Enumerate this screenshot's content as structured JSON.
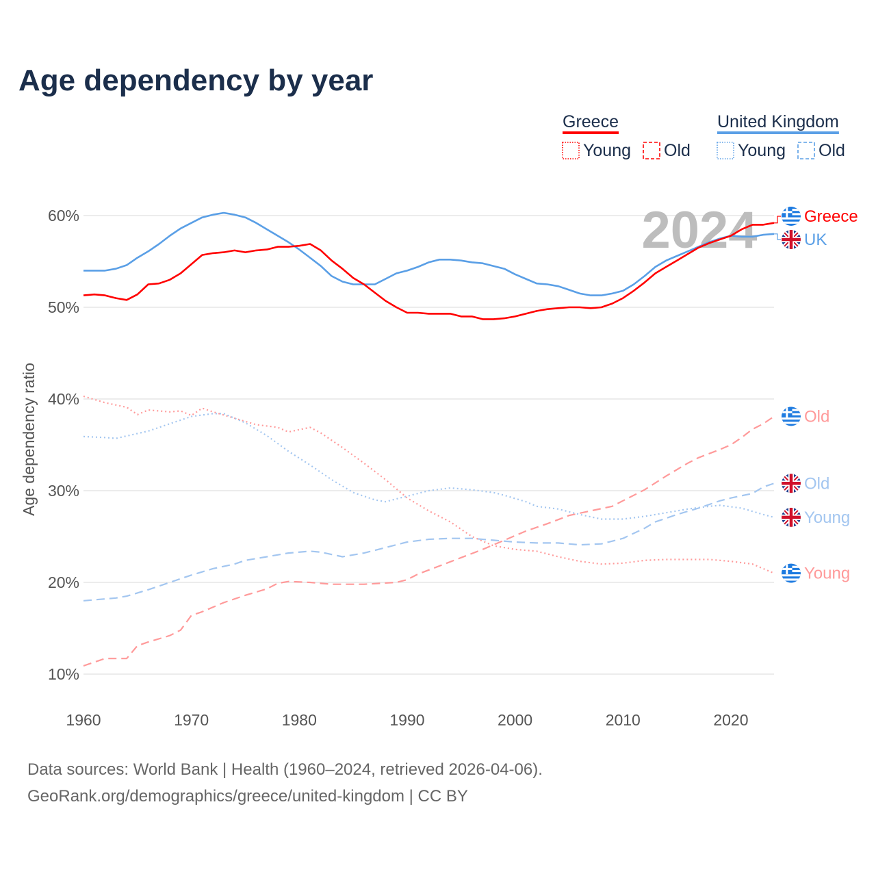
{
  "chart_data": {
    "type": "line",
    "title": "Age dependency by year",
    "ylabel": "Age dependency ratio",
    "xlabel": "",
    "xlim": [
      1960,
      2024
    ],
    "ylim": [
      10,
      60
    ],
    "x_ticks": [
      "1960",
      "1970",
      "1980",
      "1990",
      "2000",
      "2010",
      "2020"
    ],
    "y_ticks": [
      "10%",
      "20%",
      "30%",
      "40%",
      "50%",
      "60%"
    ],
    "year_watermark": "2024",
    "legend": {
      "groups": [
        {
          "country": "Greece",
          "color": "#ff0000",
          "items": [
            "Young",
            "Old"
          ]
        },
        {
          "country": "United Kingdom",
          "color": "#5a9fe6",
          "items": [
            "Young",
            "Old"
          ]
        }
      ],
      "placement": "top-right"
    },
    "series": [
      {
        "name": "Greece",
        "end_label": "Greece",
        "country": "Greece",
        "style": "solid",
        "color": "#ff0000",
        "x": [
          1960,
          1961,
          1962,
          1963,
          1964,
          1965,
          1966,
          1967,
          1968,
          1969,
          1970,
          1971,
          1972,
          1973,
          1974,
          1975,
          1976,
          1977,
          1978,
          1979,
          1980,
          1981,
          1982,
          1983,
          1984,
          1985,
          1986,
          1987,
          1988,
          1989,
          1990,
          1991,
          1992,
          1993,
          1994,
          1995,
          1996,
          1997,
          1998,
          1999,
          2000,
          2001,
          2002,
          2003,
          2004,
          2005,
          2006,
          2007,
          2008,
          2009,
          2010,
          2011,
          2012,
          2013,
          2014,
          2015,
          2016,
          2017,
          2018,
          2019,
          2020,
          2021,
          2022,
          2023,
          2024
        ],
        "y": [
          51.3,
          51.4,
          51.3,
          51.0,
          50.8,
          51.4,
          52.5,
          52.6,
          53.0,
          53.7,
          54.7,
          55.7,
          55.9,
          56.0,
          56.2,
          56.0,
          56.2,
          56.3,
          56.6,
          56.6,
          56.7,
          56.9,
          56.2,
          55.1,
          54.2,
          53.2,
          52.5,
          51.6,
          50.7,
          50.0,
          49.4,
          49.4,
          49.3,
          49.3,
          49.3,
          49.0,
          49.0,
          48.7,
          48.7,
          48.8,
          49.0,
          49.3,
          49.6,
          49.8,
          49.9,
          50.0,
          50.0,
          49.9,
          50.0,
          50.4,
          51.0,
          51.8,
          52.7,
          53.7,
          54.4,
          55.1,
          55.8,
          56.5,
          57.0,
          57.4,
          57.8,
          58.5,
          59.0,
          59.0,
          59.2
        ]
      },
      {
        "name": "United Kingdom",
        "end_label": "UK",
        "country": "United Kingdom",
        "style": "solid",
        "color": "#5a9fe6",
        "x": [
          1960,
          1961,
          1962,
          1963,
          1964,
          1965,
          1966,
          1967,
          1968,
          1969,
          1970,
          1971,
          1972,
          1973,
          1974,
          1975,
          1976,
          1977,
          1978,
          1979,
          1980,
          1981,
          1982,
          1983,
          1984,
          1985,
          1986,
          1987,
          1988,
          1989,
          1990,
          1991,
          1992,
          1993,
          1994,
          1995,
          1996,
          1997,
          1998,
          1999,
          2000,
          2001,
          2002,
          2003,
          2004,
          2005,
          2006,
          2007,
          2008,
          2009,
          2010,
          2011,
          2012,
          2013,
          2014,
          2015,
          2016,
          2017,
          2018,
          2019,
          2020,
          2021,
          2022,
          2023,
          2024
        ],
        "y": [
          54.0,
          54.0,
          54.0,
          54.2,
          54.6,
          55.4,
          56.1,
          56.9,
          57.8,
          58.6,
          59.2,
          59.8,
          60.1,
          60.3,
          60.1,
          59.8,
          59.2,
          58.5,
          57.8,
          57.1,
          56.3,
          55.4,
          54.5,
          53.4,
          52.8,
          52.5,
          52.5,
          52.5,
          53.1,
          53.7,
          54.0,
          54.4,
          54.9,
          55.2,
          55.2,
          55.1,
          54.9,
          54.8,
          54.5,
          54.2,
          53.6,
          53.1,
          52.6,
          52.5,
          52.3,
          51.9,
          51.5,
          51.3,
          51.3,
          51.5,
          51.8,
          52.5,
          53.4,
          54.4,
          55.1,
          55.6,
          56.1,
          56.6,
          57.1,
          57.5,
          57.8,
          57.7,
          57.7,
          57.9,
          58.0
        ]
      },
      {
        "name": "Greece Young",
        "end_label": "Young",
        "country": "Greece",
        "style": "dotted",
        "color": "#ff9a9a",
        "x": [
          1960,
          1962,
          1964,
          1965,
          1966,
          1968,
          1969,
          1970,
          1971,
          1972,
          1974,
          1976,
          1978,
          1979,
          1981,
          1982,
          1984,
          1986,
          1988,
          1990,
          1992,
          1994,
          1996,
          1998,
          2000,
          2002,
          2004,
          2006,
          2008,
          2010,
          2012,
          2014,
          2016,
          2018,
          2020,
          2022,
          2024
        ],
        "y": [
          40.3,
          39.6,
          39.1,
          38.3,
          38.8,
          38.6,
          38.7,
          38.2,
          39.0,
          38.6,
          37.9,
          37.2,
          36.9,
          36.4,
          36.9,
          36.3,
          34.7,
          33.0,
          31.2,
          29.2,
          27.8,
          26.6,
          25.0,
          24.0,
          23.6,
          23.4,
          22.8,
          22.3,
          22.0,
          22.1,
          22.4,
          22.5,
          22.5,
          22.5,
          22.3,
          22.0,
          21.0
        ]
      },
      {
        "name": "Greece Old",
        "end_label": "Old",
        "country": "Greece",
        "style": "dashed",
        "color": "#ff9a9a",
        "x": [
          1960,
          1962,
          1964,
          1965,
          1966,
          1968,
          1969,
          1970,
          1971,
          1973,
          1975,
          1977,
          1978,
          1979,
          1981,
          1983,
          1986,
          1989,
          1990,
          1991,
          1993,
          1995,
          1997,
          1999,
          2001,
          2003,
          2005,
          2007,
          2009,
          2010,
          2012,
          2014,
          2016,
          2017,
          2019,
          2020,
          2021,
          2022,
          2023,
          2024
        ],
        "y": [
          10.9,
          11.7,
          11.7,
          13.1,
          13.5,
          14.2,
          14.8,
          16.4,
          16.8,
          17.8,
          18.6,
          19.3,
          19.9,
          20.1,
          20.0,
          19.8,
          19.8,
          20.0,
          20.3,
          20.9,
          21.8,
          22.7,
          23.6,
          24.6,
          25.6,
          26.4,
          27.3,
          27.8,
          28.3,
          28.9,
          30.1,
          31.6,
          33.0,
          33.6,
          34.5,
          35.0,
          35.8,
          36.7,
          37.3,
          38.1
        ]
      },
      {
        "name": "UK Young",
        "end_label": "Young",
        "country": "United Kingdom",
        "style": "dotted",
        "color": "#a3c6f0",
        "x": [
          1960,
          1962,
          1963,
          1966,
          1968,
          1970,
          1972,
          1973,
          1975,
          1977,
          1979,
          1981,
          1983,
          1985,
          1987,
          1988,
          1990,
          1992,
          1994,
          1996,
          1998,
          1999,
          2001,
          2002,
          2004,
          2006,
          2008,
          2010,
          2012,
          2014,
          2016,
          2018,
          2019,
          2021,
          2023,
          2024
        ],
        "y": [
          35.9,
          35.8,
          35.7,
          36.5,
          37.3,
          38.1,
          38.4,
          38.4,
          37.4,
          36.0,
          34.3,
          32.8,
          31.2,
          29.8,
          29.0,
          28.8,
          29.4,
          30.0,
          30.3,
          30.1,
          29.8,
          29.5,
          28.8,
          28.3,
          28.0,
          27.4,
          26.9,
          26.9,
          27.2,
          27.6,
          28.0,
          28.3,
          28.4,
          28.1,
          27.4,
          27.1
        ]
      },
      {
        "name": "UK Old",
        "end_label": "Old",
        "country": "United Kingdom",
        "style": "dashed",
        "color": "#a3c6f0",
        "x": [
          1960,
          1963,
          1964,
          1966,
          1968,
          1970,
          1972,
          1974,
          1975,
          1977,
          1979,
          1981,
          1982,
          1984,
          1986,
          1988,
          1990,
          1992,
          1994,
          1996,
          1998,
          2000,
          2002,
          2004,
          2006,
          2008,
          2010,
          2012,
          2013,
          2015,
          2017,
          2019,
          2020,
          2022,
          2023,
          2024
        ],
        "y": [
          18.0,
          18.3,
          18.5,
          19.2,
          20.0,
          20.8,
          21.5,
          22.0,
          22.4,
          22.8,
          23.2,
          23.4,
          23.3,
          22.8,
          23.2,
          23.8,
          24.4,
          24.7,
          24.8,
          24.8,
          24.6,
          24.4,
          24.3,
          24.3,
          24.1,
          24.2,
          24.8,
          25.9,
          26.6,
          27.4,
          28.1,
          28.9,
          29.2,
          29.7,
          30.4,
          30.8
        ]
      }
    ]
  },
  "footer": {
    "line1": "Data sources: World Bank | Health (1960–2024, retrieved 2026-04-06).",
    "line2": "GeoRank.org/demographics/greece/united-kingdom | CC BY"
  }
}
